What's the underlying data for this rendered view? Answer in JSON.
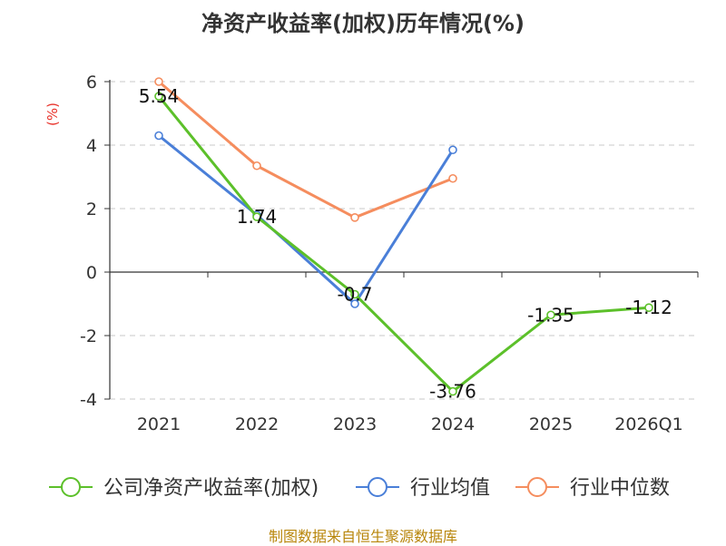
{
  "chart_data": {
    "type": "line",
    "title": "净资产收益率(加权)历年情况(%)",
    "ylabel": "(%)",
    "xlabel": "",
    "categories": [
      "2021",
      "2022",
      "2023",
      "2024",
      "2025",
      "2026Q1"
    ],
    "ylim": [
      -4,
      6
    ],
    "yticks": [
      -4,
      -2,
      0,
      2,
      4,
      6
    ],
    "grid": true,
    "legend_position": "bottom",
    "series": [
      {
        "name": "公司净资产收益率(加权)",
        "color": "#5cc02a",
        "values": [
          5.54,
          1.74,
          -0.7,
          -3.76,
          -1.35,
          -1.12
        ],
        "labels": [
          "5.54",
          "1.74",
          "-0.7",
          "-3.76",
          "-1.35",
          "-1.12"
        ]
      },
      {
        "name": "行业均值",
        "color": "#4a7fd8",
        "values": [
          4.3,
          1.8,
          -1.0,
          3.85,
          null,
          null
        ]
      },
      {
        "name": "行业中位数",
        "color": "#f58d5e",
        "values": [
          6.0,
          3.35,
          1.72,
          2.95,
          null,
          null
        ]
      }
    ]
  },
  "footer": {
    "source": "制图数据来自恒生聚源数据库"
  }
}
